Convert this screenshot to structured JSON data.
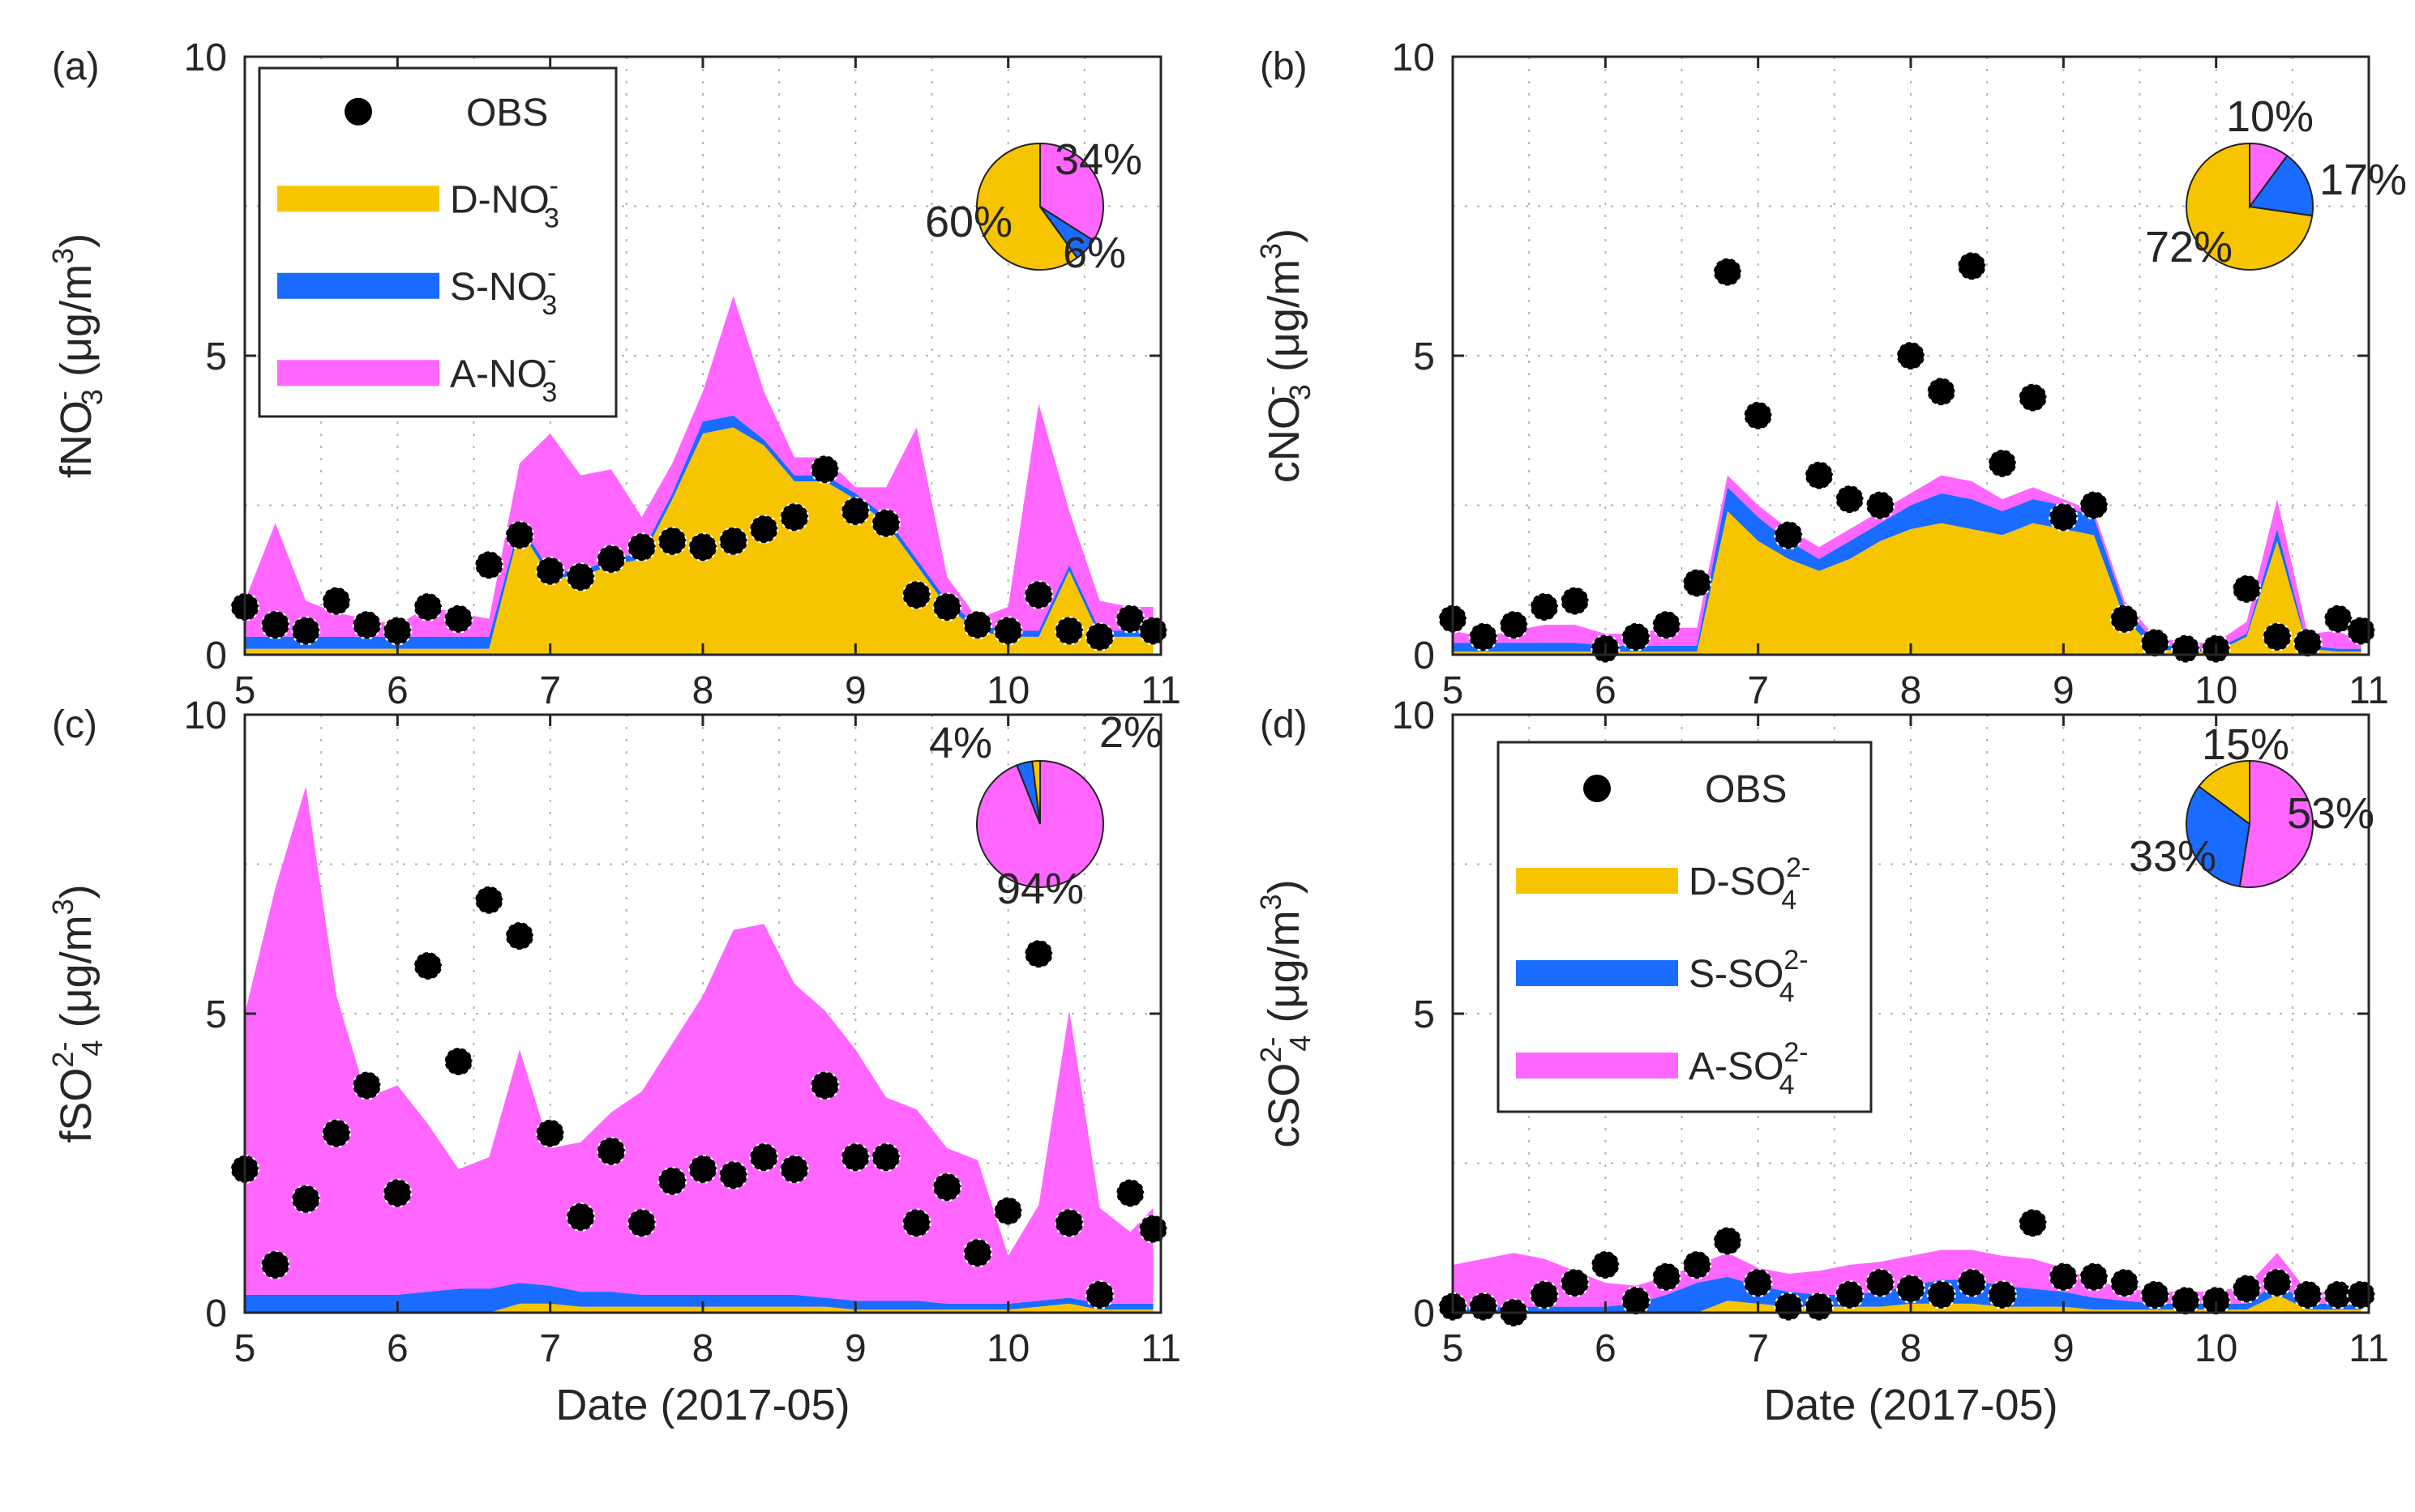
{
  "colors": {
    "d": "#F7C500",
    "s": "#1A6BFF",
    "a": "#FF66FF",
    "obs": "#000000"
  },
  "panels": [
    {
      "id": "a",
      "label": "(a)",
      "ylabel_main": "fNO",
      "ylabel_sup": "-",
      "ylabel_sub": "3",
      "ylabel_unit": " (μg/m",
      "ylabel_unit_sup": "3",
      "ylabel_end": ")",
      "legend": {
        "obs": "OBS",
        "d_main": "D-NO",
        "d_sup": "-",
        "d_sub": "3",
        "s_main": "S-NO",
        "s_sup": "-",
        "s_sub": "3",
        "a_main": "A-NO",
        "a_sup": "-",
        "a_sub": "3"
      },
      "pie": {
        "d": "60%",
        "s": "6%",
        "a": "34%"
      }
    },
    {
      "id": "b",
      "label": "(b)",
      "ylabel_main": "cNO",
      "ylabel_sup": "-",
      "ylabel_sub": "3",
      "ylabel_unit": " (μg/m",
      "ylabel_unit_sup": "3",
      "ylabel_end": ")",
      "pie": {
        "d": "72%",
        "s": "17%",
        "a": "10%"
      }
    },
    {
      "id": "c",
      "label": "(c)",
      "ylabel_main": "fSO",
      "ylabel_sup": "2-",
      "ylabel_sub": "4",
      "ylabel_unit": " (μg/m",
      "ylabel_unit_sup": "3",
      "ylabel_end": ")",
      "pie": {
        "d": "2%",
        "s": "4%",
        "a": "94%"
      }
    },
    {
      "id": "d",
      "label": "(d)",
      "ylabel_main": "cSO",
      "ylabel_sup": "2-",
      "ylabel_sub": "4",
      "ylabel_unit": " (μg/m",
      "ylabel_unit_sup": "3",
      "ylabel_end": ")",
      "legend": {
        "obs": "OBS",
        "d_main": "D-SO",
        "d_sup": "2-",
        "d_sub": "4",
        "s_main": "S-SO",
        "s_sup": "2-",
        "s_sub": "4",
        "a_main": "A-SO",
        "a_sup": "2-",
        "a_sub": "4"
      },
      "pie": {
        "d": "15%",
        "s": "33%",
        "a": "53%"
      }
    }
  ],
  "xlabel": "Date (2017-05)",
  "chart_data": [
    {
      "panel": "a",
      "type": "area",
      "xlim": [
        5,
        11
      ],
      "ylim": [
        0,
        10
      ],
      "xticks": [
        "5",
        "6",
        "7",
        "8",
        "9",
        "10",
        "11"
      ],
      "yticks": [
        "0",
        "5",
        "10"
      ],
      "pie_values": [
        60,
        6,
        34
      ],
      "x": [
        5.0,
        5.2,
        5.4,
        5.6,
        5.8,
        6.0,
        6.2,
        6.4,
        6.6,
        6.8,
        7.0,
        7.2,
        7.4,
        7.6,
        7.8,
        8.0,
        8.2,
        8.4,
        8.6,
        8.8,
        9.0,
        9.2,
        9.4,
        9.6,
        9.8,
        10.0,
        10.2,
        10.4,
        10.6,
        10.8,
        10.95
      ],
      "series": [
        {
          "name": "D",
          "values": [
            0.1,
            0.1,
            0.1,
            0.1,
            0.1,
            0.1,
            0.1,
            0.1,
            0.1,
            2.1,
            1.3,
            1.3,
            1.5,
            1.6,
            2.6,
            3.7,
            3.8,
            3.5,
            2.9,
            2.9,
            2.6,
            2.2,
            1.5,
            0.8,
            0.4,
            0.3,
            0.3,
            1.4,
            0.3,
            0.3,
            0.3
          ]
        },
        {
          "name": "S",
          "values": [
            0.2,
            0.2,
            0.2,
            0.2,
            0.2,
            0.2,
            0.2,
            0.2,
            0.2,
            0.1,
            0.1,
            0.1,
            0.1,
            0.1,
            0.1,
            0.2,
            0.2,
            0.1,
            0.1,
            0.1,
            0.1,
            0.1,
            0.1,
            0.1,
            0.1,
            0.1,
            0.1,
            0.1,
            0.1,
            0.1,
            0.1
          ]
        },
        {
          "name": "A",
          "values": [
            0.6,
            1.9,
            0.6,
            0.4,
            0.3,
            0.2,
            0.5,
            0.4,
            0.3,
            1.0,
            2.3,
            1.6,
            1.5,
            0.6,
            0.5,
            0.5,
            2.0,
            0.8,
            0.3,
            0.3,
            0.1,
            0.5,
            2.2,
            0.4,
            0.1,
            0.4,
            3.8,
            0.9,
            0.5,
            0.4,
            0.4
          ]
        },
        {
          "name": "OBS",
          "values": [
            0.8,
            0.5,
            0.4,
            0.9,
            0.5,
            0.4,
            0.8,
            0.6,
            1.5,
            2.0,
            1.4,
            1.3,
            1.6,
            1.8,
            1.9,
            1.8,
            1.9,
            2.1,
            2.3,
            3.1,
            2.4,
            2.2,
            1.0,
            0.8,
            0.5,
            0.4,
            1.0,
            0.4,
            0.3,
            0.6,
            0.4
          ]
        }
      ]
    },
    {
      "panel": "b",
      "type": "area",
      "xlim": [
        5,
        11
      ],
      "ylim": [
        0,
        10
      ],
      "xticks": [
        "5",
        "6",
        "7",
        "8",
        "9",
        "10",
        "11"
      ],
      "yticks": [
        "0",
        "5",
        "10"
      ],
      "pie_values": [
        72,
        17,
        10
      ],
      "x": [
        5.0,
        5.2,
        5.4,
        5.6,
        5.8,
        6.0,
        6.2,
        6.4,
        6.6,
        6.8,
        7.0,
        7.2,
        7.4,
        7.6,
        7.8,
        8.0,
        8.2,
        8.4,
        8.6,
        8.8,
        9.0,
        9.2,
        9.4,
        9.6,
        9.8,
        10.0,
        10.2,
        10.4,
        10.6,
        10.8,
        10.95
      ],
      "series": [
        {
          "name": "D",
          "values": [
            0.05,
            0.05,
            0.05,
            0.05,
            0.05,
            0.05,
            0.05,
            0.05,
            0.05,
            2.4,
            1.9,
            1.6,
            1.4,
            1.6,
            1.9,
            2.1,
            2.2,
            2.1,
            2.0,
            2.2,
            2.1,
            2.0,
            0.6,
            0.1,
            0.05,
            0.05,
            0.3,
            1.9,
            0.1,
            0.05,
            0.05
          ]
        },
        {
          "name": "S",
          "values": [
            0.15,
            0.15,
            0.15,
            0.15,
            0.15,
            0.1,
            0.1,
            0.1,
            0.1,
            0.4,
            0.4,
            0.3,
            0.2,
            0.3,
            0.3,
            0.4,
            0.5,
            0.5,
            0.4,
            0.4,
            0.4,
            0.3,
            0.2,
            0.1,
            0.05,
            0.05,
            0.05,
            0.2,
            0.05,
            0.05,
            0.05
          ]
        },
        {
          "name": "A",
          "values": [
            0.2,
            0.1,
            0.2,
            0.3,
            0.3,
            0.2,
            0.2,
            0.3,
            0.3,
            0.2,
            0.2,
            0.2,
            0.2,
            0.2,
            0.2,
            0.2,
            0.3,
            0.3,
            0.2,
            0.2,
            0.1,
            0.1,
            0.1,
            0.1,
            0.1,
            0.1,
            0.2,
            0.5,
            0.2,
            0.3,
            0.1
          ]
        },
        {
          "name": "OBS",
          "values": [
            0.6,
            0.3,
            0.5,
            0.8,
            0.9,
            0.1,
            0.3,
            0.5,
            1.2,
            6.4,
            4.0,
            2.0,
            3.0,
            2.6,
            2.5,
            5.0,
            4.4,
            6.5,
            3.2,
            4.3,
            2.3,
            2.5,
            0.6,
            0.2,
            0.1,
            0.1,
            1.1,
            0.3,
            0.2,
            0.6,
            0.4
          ]
        }
      ]
    },
    {
      "panel": "c",
      "type": "area",
      "xlim": [
        5,
        11
      ],
      "ylim": [
        0,
        10
      ],
      "xticks": [
        "5",
        "6",
        "7",
        "8",
        "9",
        "10",
        "11"
      ],
      "yticks": [
        "0",
        "5",
        "10"
      ],
      "pie_values": [
        2,
        4,
        94
      ],
      "x": [
        5.0,
        5.2,
        5.4,
        5.6,
        5.8,
        6.0,
        6.2,
        6.4,
        6.6,
        6.8,
        7.0,
        7.2,
        7.4,
        7.6,
        7.8,
        8.0,
        8.2,
        8.4,
        8.6,
        8.8,
        9.0,
        9.2,
        9.4,
        9.6,
        9.8,
        10.0,
        10.2,
        10.4,
        10.6,
        10.8,
        10.95
      ],
      "series": [
        {
          "name": "D",
          "values": [
            0.0,
            0.0,
            0.0,
            0.0,
            0.0,
            0.0,
            0.0,
            0.0,
            0.0,
            0.15,
            0.15,
            0.1,
            0.1,
            0.1,
            0.1,
            0.1,
            0.1,
            0.1,
            0.1,
            0.1,
            0.05,
            0.05,
            0.05,
            0.05,
            0.05,
            0.05,
            0.1,
            0.15,
            0.05,
            0.05,
            0.05
          ]
        },
        {
          "name": "S",
          "values": [
            0.3,
            0.3,
            0.3,
            0.3,
            0.3,
            0.3,
            0.35,
            0.4,
            0.4,
            0.35,
            0.3,
            0.25,
            0.25,
            0.2,
            0.2,
            0.2,
            0.2,
            0.2,
            0.2,
            0.15,
            0.15,
            0.15,
            0.15,
            0.1,
            0.1,
            0.1,
            0.1,
            0.1,
            0.1,
            0.1,
            0.1
          ]
        },
        {
          "name": "A",
          "values": [
            4.7,
            6.8,
            8.5,
            5.0,
            3.3,
            3.5,
            2.8,
            2.0,
            2.2,
            3.9,
            2.3,
            2.5,
            3.0,
            3.4,
            4.2,
            5.0,
            6.1,
            6.2,
            5.2,
            4.8,
            4.2,
            3.4,
            3.2,
            2.6,
            2.4,
            0.8,
            1.6,
            4.8,
            1.6,
            1.2,
            1.6
          ]
        },
        {
          "name": "OBS",
          "values": [
            2.4,
            0.8,
            1.9,
            3.0,
            3.8,
            2.0,
            5.8,
            4.2,
            6.9,
            6.3,
            3.0,
            1.6,
            2.7,
            1.5,
            2.2,
            2.4,
            2.3,
            2.6,
            2.4,
            3.8,
            2.6,
            2.6,
            1.5,
            2.1,
            1.0,
            1.7,
            6.0,
            1.5,
            0.3,
            2.0,
            1.4
          ]
        }
      ]
    },
    {
      "panel": "d",
      "type": "area",
      "xlim": [
        5,
        11
      ],
      "ylim": [
        0,
        10
      ],
      "xticks": [
        "5",
        "6",
        "7",
        "8",
        "9",
        "10",
        "11"
      ],
      "yticks": [
        "0",
        "5",
        "10"
      ],
      "pie_values": [
        15,
        33,
        53
      ],
      "x": [
        5.0,
        5.2,
        5.4,
        5.6,
        5.8,
        6.0,
        6.2,
        6.4,
        6.6,
        6.8,
        7.0,
        7.2,
        7.4,
        7.6,
        7.8,
        8.0,
        8.2,
        8.4,
        8.6,
        8.8,
        9.0,
        9.2,
        9.4,
        9.6,
        9.8,
        10.0,
        10.2,
        10.4,
        10.6,
        10.8,
        10.95
      ],
      "series": [
        {
          "name": "D",
          "values": [
            0.0,
            0.0,
            0.0,
            0.0,
            0.0,
            0.0,
            0.0,
            0.0,
            0.0,
            0.2,
            0.15,
            0.1,
            0.1,
            0.1,
            0.1,
            0.15,
            0.15,
            0.15,
            0.1,
            0.1,
            0.1,
            0.05,
            0.05,
            0.05,
            0.05,
            0.05,
            0.05,
            0.3,
            0.05,
            0.05,
            0.05
          ]
        },
        {
          "name": "S",
          "values": [
            0.1,
            0.1,
            0.1,
            0.1,
            0.1,
            0.1,
            0.15,
            0.3,
            0.5,
            0.4,
            0.3,
            0.25,
            0.2,
            0.2,
            0.25,
            0.3,
            0.4,
            0.4,
            0.35,
            0.3,
            0.25,
            0.2,
            0.15,
            0.1,
            0.1,
            0.1,
            0.1,
            0.2,
            0.1,
            0.1,
            0.1
          ]
        },
        {
          "name": "A",
          "values": [
            0.7,
            0.8,
            0.9,
            0.8,
            0.6,
            0.4,
            0.3,
            0.3,
            0.3,
            0.4,
            0.3,
            0.3,
            0.4,
            0.5,
            0.5,
            0.5,
            0.5,
            0.5,
            0.5,
            0.5,
            0.4,
            0.3,
            0.2,
            0.2,
            0.2,
            0.2,
            0.3,
            0.5,
            0.2,
            0.2,
            0.2
          ]
        },
        {
          "name": "OBS",
          "values": [
            0.1,
            0.1,
            0.0,
            0.3,
            0.5,
            0.8,
            0.2,
            0.6,
            0.8,
            1.2,
            0.5,
            0.1,
            0.1,
            0.3,
            0.5,
            0.4,
            0.3,
            0.5,
            0.3,
            1.5,
            0.6,
            0.6,
            0.5,
            0.3,
            0.2,
            0.2,
            0.4,
            0.5,
            0.3,
            0.3,
            0.3
          ]
        }
      ]
    }
  ]
}
